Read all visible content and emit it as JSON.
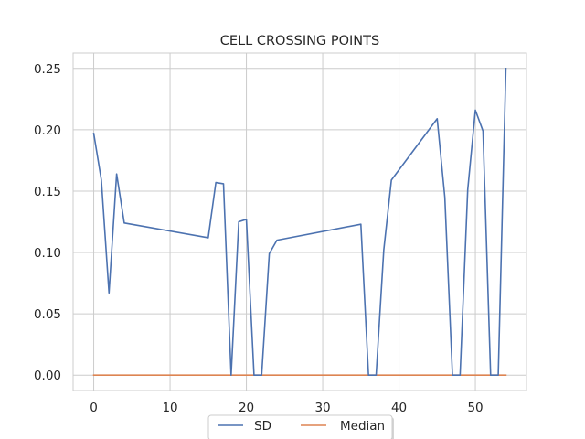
{
  "chart_data": {
    "type": "line",
    "title": "CELL CROSSING POINTS",
    "xlabel": "",
    "ylabel": "",
    "xlim": [
      -2.7,
      56.7
    ],
    "ylim": [
      -0.0125,
      0.2625
    ],
    "xticks": [
      0,
      10,
      20,
      30,
      40,
      50
    ],
    "yticks": [
      0.0,
      0.05,
      0.1,
      0.15,
      0.2,
      0.25
    ],
    "xtick_labels": [
      "0",
      "10",
      "20",
      "30",
      "40",
      "50"
    ],
    "ytick_labels": [
      "0.00",
      "0.05",
      "0.10",
      "0.15",
      "0.20",
      "0.25"
    ],
    "grid": true,
    "legend_position": "bottom-center",
    "series": [
      {
        "name": "SD",
        "color": "#4c72b0",
        "x": [
          0,
          1,
          2,
          3,
          4,
          15,
          16,
          17,
          18,
          19,
          20,
          21,
          22,
          23,
          24,
          35,
          36,
          37,
          38,
          39,
          45,
          46,
          47,
          48,
          49,
          50,
          51,
          52,
          53,
          54
        ],
        "y": [
          0.197,
          0.159,
          0.067,
          0.164,
          0.124,
          0.112,
          0.157,
          0.156,
          0.0,
          0.125,
          0.127,
          0.0,
          0.0,
          0.099,
          0.11,
          0.123,
          0.0,
          0.0,
          0.102,
          0.159,
          0.209,
          0.145,
          0.0,
          0.0,
          0.151,
          0.216,
          0.199,
          0.0,
          0.0,
          0.25
        ]
      },
      {
        "name": "Median",
        "color": "#dd8452",
        "x": [
          0,
          54
        ],
        "y": [
          0.0,
          0.0
        ]
      }
    ]
  }
}
